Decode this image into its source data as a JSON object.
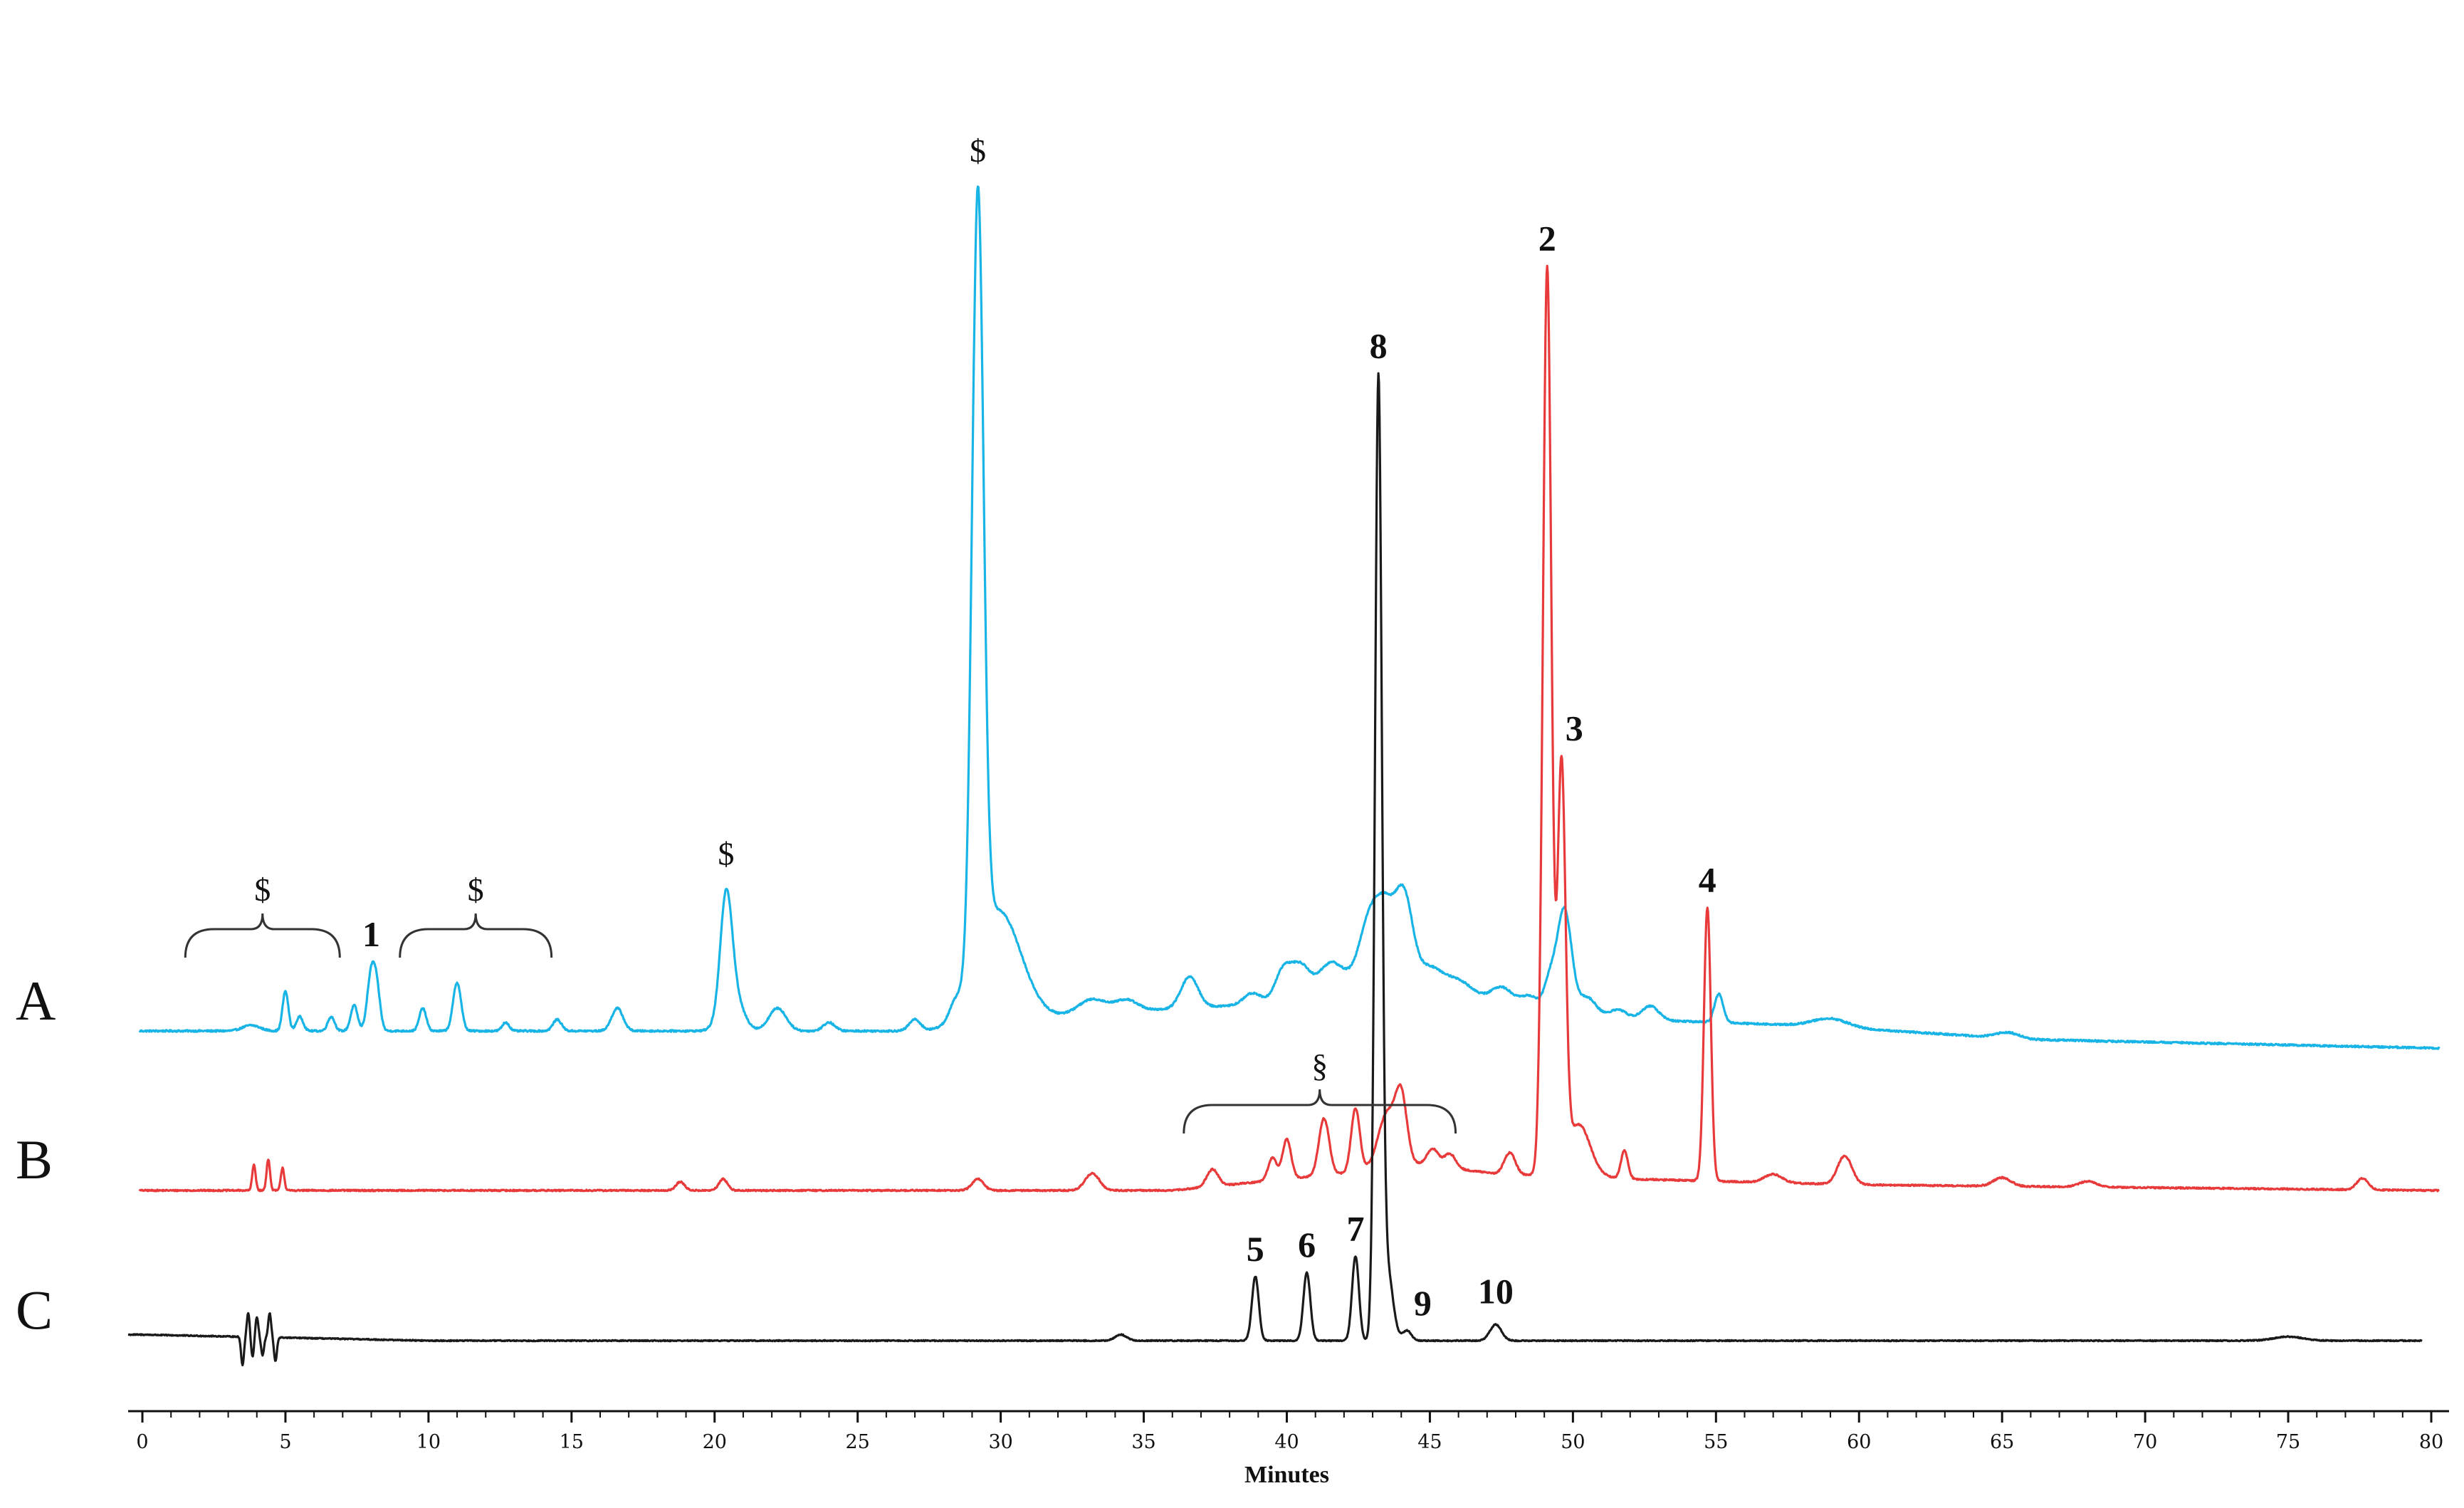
{
  "chart_data": {
    "type": "line",
    "title": "",
    "xlabel": "Minutes",
    "ylabel": "",
    "xlim": [
      0,
      80
    ],
    "xticks": [
      0,
      5,
      10,
      15,
      20,
      25,
      30,
      35,
      40,
      45,
      50,
      55,
      60,
      65,
      70,
      75,
      80
    ],
    "grid": false,
    "legend": "none",
    "series": [
      {
        "name": "A",
        "color": "#18b4e6",
        "baseline": 0,
        "noise": 0.6,
        "drift": [
          [
            0,
            0
          ],
          [
            28,
            0
          ],
          [
            29.6,
            2
          ],
          [
            33,
            6
          ],
          [
            40,
            10
          ],
          [
            43,
            22
          ],
          [
            47,
            10
          ],
          [
            52,
            4
          ],
          [
            58,
            2
          ],
          [
            66,
            -3
          ],
          [
            80,
            -6
          ]
        ],
        "peaks": [
          [
            3.8,
            2,
            0.3
          ],
          [
            5.0,
            14,
            0.1
          ],
          [
            5.5,
            5,
            0.12
          ],
          [
            6.6,
            5,
            0.12
          ],
          [
            7.4,
            9,
            0.12
          ],
          [
            8.0,
            20,
            0.14
          ],
          [
            8.2,
            12,
            0.12
          ],
          [
            9.8,
            8,
            0.12
          ],
          [
            11.0,
            17,
            0.14
          ],
          [
            12.7,
            3,
            0.12
          ],
          [
            14.5,
            4,
            0.15
          ],
          [
            16.6,
            8,
            0.2
          ],
          [
            20.4,
            38,
            0.2
          ],
          [
            20.6,
            14,
            0.35
          ],
          [
            22.2,
            8,
            0.3
          ],
          [
            24.0,
            3,
            0.2
          ],
          [
            27.0,
            4,
            0.2
          ],
          [
            28.4,
            4,
            0.2
          ],
          [
            29.2,
            268,
            0.2
          ],
          [
            29.9,
            40,
            0.8
          ],
          [
            33.2,
            5,
            0.5
          ],
          [
            34.4,
            4,
            0.4
          ],
          [
            36.6,
            11,
            0.3
          ],
          [
            38.8,
            4,
            0.3
          ],
          [
            39.9,
            12,
            0.3
          ],
          [
            40.5,
            10,
            0.3
          ],
          [
            41.5,
            8,
            0.4
          ],
          [
            42.8,
            14,
            0.3
          ],
          [
            43.4,
            24,
            0.35
          ],
          [
            44.1,
            28,
            0.3
          ],
          [
            45.0,
            6,
            0.4
          ],
          [
            46.0,
            5,
            0.5
          ],
          [
            47.5,
            6,
            0.4
          ],
          [
            48.5,
            4,
            0.3
          ],
          [
            49.2,
            10,
            0.2
          ],
          [
            49.7,
            36,
            0.25
          ],
          [
            50.5,
            6,
            0.3
          ],
          [
            51.6,
            3,
            0.3
          ],
          [
            52.7,
            5,
            0.3
          ],
          [
            55.1,
            10,
            0.15
          ],
          [
            59.0,
            3,
            0.6
          ],
          [
            65.2,
            2,
            0.4
          ]
        ]
      },
      {
        "name": "B",
        "color": "#e83a3a",
        "baseline": 0,
        "noise": 0.5,
        "drift": [
          [
            0,
            0
          ],
          [
            36,
            0
          ],
          [
            42,
            6
          ],
          [
            44,
            10
          ],
          [
            48,
            5
          ],
          [
            49,
            6
          ],
          [
            52,
            4
          ],
          [
            60,
            2
          ],
          [
            80,
            0
          ]
        ],
        "peaks": [
          [
            3.9,
            9,
            0.06
          ],
          [
            4.4,
            11,
            0.06
          ],
          [
            4.9,
            8,
            0.06
          ],
          [
            18.8,
            3,
            0.15
          ],
          [
            20.3,
            4,
            0.15
          ],
          [
            29.2,
            4,
            0.2
          ],
          [
            33.2,
            6,
            0.25
          ],
          [
            37.4,
            6,
            0.2
          ],
          [
            39.5,
            8,
            0.15
          ],
          [
            40.0,
            14,
            0.15
          ],
          [
            41.3,
            20,
            0.18
          ],
          [
            42.4,
            22,
            0.15
          ],
          [
            43.5,
            18,
            0.3
          ],
          [
            44.0,
            22,
            0.2
          ],
          [
            45.1,
            6,
            0.2
          ],
          [
            45.7,
            5,
            0.2
          ],
          [
            47.8,
            8,
            0.2
          ],
          [
            49.1,
            318,
            0.15
          ],
          [
            49.6,
            140,
            0.14
          ],
          [
            50.2,
            18,
            0.4
          ],
          [
            51.8,
            10,
            0.12
          ],
          [
            54.7,
            96,
            0.12
          ],
          [
            57.0,
            3,
            0.3
          ],
          [
            59.5,
            10,
            0.25
          ],
          [
            65.0,
            3,
            0.3
          ],
          [
            68.0,
            2,
            0.3
          ],
          [
            77.6,
            4,
            0.2
          ]
        ]
      },
      {
        "name": "C",
        "color": "#1a1a1a",
        "baseline": 0,
        "noise": 0.5,
        "drift": [
          [
            0,
            3
          ],
          [
            10,
            0
          ],
          [
            80,
            0
          ]
        ],
        "peaks": [
          [
            3.5,
            -14,
            0.05
          ],
          [
            3.7,
            12,
            0.05
          ],
          [
            3.85,
            -10,
            0.05
          ],
          [
            4.0,
            10,
            0.05
          ],
          [
            4.2,
            -9,
            0.05
          ],
          [
            4.45,
            12,
            0.05
          ],
          [
            4.65,
            -12,
            0.05
          ],
          [
            34.2,
            3,
            0.2
          ],
          [
            38.9,
            32,
            0.12
          ],
          [
            40.7,
            34,
            0.12
          ],
          [
            42.4,
            42,
            0.12
          ],
          [
            43.2,
            470,
            0.12
          ],
          [
            43.5,
            36,
            0.2
          ],
          [
            44.2,
            5,
            0.15
          ],
          [
            47.3,
            8,
            0.2
          ],
          [
            75.0,
            2,
            0.5
          ]
        ]
      }
    ],
    "traces": [
      "A",
      "B",
      "C"
    ],
    "peak_labels": [
      {
        "text": "1",
        "x": 8.0,
        "series": "A"
      },
      {
        "text": "2",
        "x": 49.1,
        "series": "B"
      },
      {
        "text": "3",
        "x": 49.6,
        "series": "B"
      },
      {
        "text": "4",
        "x": 54.7,
        "series": "B"
      },
      {
        "text": "5",
        "x": 38.9,
        "series": "C"
      },
      {
        "text": "6",
        "x": 40.7,
        "series": "C"
      },
      {
        "text": "7",
        "x": 42.4,
        "series": "C"
      },
      {
        "text": "8",
        "x": 43.2,
        "series": "C"
      },
      {
        "text": "9",
        "x": 44.4,
        "series": "C"
      },
      {
        "text": "10",
        "x": 47.3,
        "series": "C"
      }
    ],
    "annotations": [
      {
        "text": "$",
        "type": "brace",
        "x_from": 1.5,
        "x_to": 6.9,
        "series": "A"
      },
      {
        "text": "$",
        "type": "brace",
        "x_from": 9.0,
        "x_to": 14.3,
        "series": "A"
      },
      {
        "text": "$",
        "type": "peak",
        "x": 20.4,
        "series": "A"
      },
      {
        "text": "$",
        "type": "peak",
        "x": 29.2,
        "series": "A"
      },
      {
        "text": "§",
        "type": "brace",
        "x_from": 36.4,
        "x_to": 45.9,
        "series": "B"
      }
    ]
  }
}
